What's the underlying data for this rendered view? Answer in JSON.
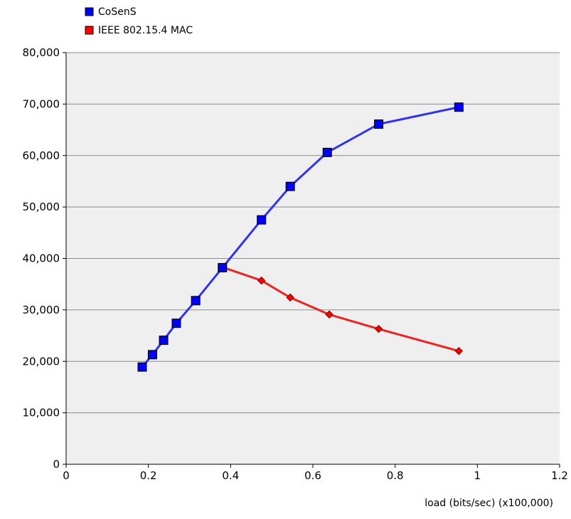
{
  "chart_data": {
    "type": "line",
    "title": "",
    "xlabel": "load (bits/sec) (x100,000)",
    "ylabel": "",
    "xlim": [
      0,
      1.2
    ],
    "ylim": [
      0,
      80000
    ],
    "x_ticks": [
      "0",
      "0.2",
      "0.4",
      "0.6",
      "0.8",
      "1",
      "1.2"
    ],
    "y_ticks": [
      "0",
      "10,000",
      "20,000",
      "30,000",
      "40,000",
      "50,000",
      "60,000",
      "70,000",
      "80,000"
    ],
    "grid": "horizontal",
    "legend_position": "top-left",
    "background_color": "#efefef",
    "series": [
      {
        "name": "CoSenS",
        "color": "#0000ff",
        "line_color": "#3333ee",
        "marker": "square",
        "x": [
          0.185,
          0.21,
          0.237,
          0.268,
          0.315,
          0.38,
          0.475,
          0.545,
          0.635,
          0.76,
          0.955
        ],
        "y": [
          18900,
          21300,
          24100,
          27400,
          31800,
          38200,
          47500,
          54000,
          60600,
          66100,
          69400
        ]
      },
      {
        "name": "IEEE 802.15.4 MAC",
        "color": "#ff0000",
        "line_color": "#ee2222",
        "marker": "diamond",
        "x": [
          0.38,
          0.475,
          0.545,
          0.64,
          0.76,
          0.955
        ],
        "y": [
          38300,
          35700,
          32400,
          29100,
          26300,
          22000
        ]
      }
    ]
  }
}
